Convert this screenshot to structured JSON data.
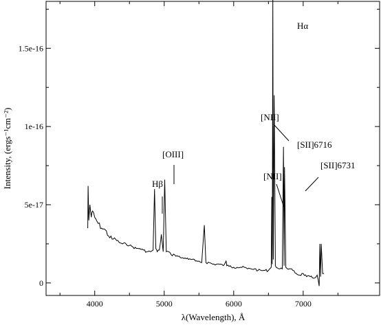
{
  "chart_data": {
    "type": "line",
    "title": "",
    "xlabel": "λ(Wavelength), Å",
    "ylabel": "Intensity, (ergs⁻¹cm⁻²)",
    "xlim": [
      3300,
      8100
    ],
    "ylim": [
      -8e-18,
      1.8e-16
    ],
    "x_ticks": [
      4000,
      5000,
      6000,
      7000
    ],
    "x_tick_labels": [
      "4000",
      "5000",
      "6000",
      "7000"
    ],
    "y_ticks": [
      0,
      5e-17,
      1e-16,
      1.5e-16
    ],
    "y_tick_labels": [
      "0",
      "5e-17",
      "1e-16",
      "1.5e-16"
    ],
    "grid": false,
    "series": [
      {
        "x": [
          3900,
          3905,
          3915,
          3930,
          3950,
          3970,
          4000,
          4050,
          4100,
          4150,
          4200,
          4250,
          4300,
          4350,
          4400,
          4450,
          4500,
          4550,
          4600,
          4650,
          4700,
          4750,
          4800,
          4840,
          4861,
          4880,
          4900,
          4930,
          4959,
          4985,
          5007,
          5030,
          5060,
          5100,
          5150,
          5200,
          5250,
          5300,
          5350,
          5400,
          5450,
          5500,
          5540,
          5577,
          5600,
          5650,
          5700,
          5750,
          5800,
          5850,
          5890,
          5900,
          5950,
          6000,
          6050,
          6100,
          6150,
          6200,
          6250,
          6300,
          6350,
          6400,
          6450,
          6500,
          6540,
          6548,
          6555,
          6563,
          6570,
          6583,
          6600,
          6650,
          6700,
          6716,
          6725,
          6731,
          6750,
          6800,
          6850,
          6900,
          6950,
          7000,
          7050,
          7100,
          7150,
          7200,
          7230,
          7240,
          7250,
          7260,
          7280,
          7300
        ],
        "y": [
          3.5e-17,
          6.2e-17,
          4e-17,
          5e-17,
          4.2e-17,
          4.6e-17,
          4.2e-17,
          3.8e-17,
          3.5e-17,
          3.4e-17,
          3e-17,
          2.8e-17,
          2.8e-17,
          2.6e-17,
          2.5e-17,
          2.5e-17,
          2.4e-17,
          2.3e-17,
          2.2e-17,
          2.2e-17,
          2.1e-17,
          2e-17,
          2e-17,
          2.1e-17,
          6e-17,
          2.2e-17,
          2e-17,
          2.1e-17,
          3.1e-17,
          2e-17,
          6.6e-17,
          2e-17,
          2e-17,
          1.8e-17,
          1.8e-17,
          1.7e-17,
          1.6e-17,
          1.6e-17,
          1.5e-17,
          1.5e-17,
          1.4e-17,
          1.4e-17,
          1.3e-17,
          3.7e-17,
          1.3e-17,
          1.3e-17,
          1.2e-17,
          1.2e-17,
          1.2e-17,
          1.1e-17,
          1.4e-17,
          1.1e-17,
          1.1e-17,
          1e-17,
          1e-17,
          1e-17,
          1e-17,
          9e-18,
          9e-18,
          9e-18,
          8e-18,
          8e-18,
          8e-18,
          8e-18,
          1e-17,
          5.5e-17,
          1.2e-17,
          1.85e-16,
          1.5e-17,
          1.2e-16,
          1.1e-17,
          9e-18,
          9e-18,
          8.7e-17,
          1.1e-17,
          7.4e-17,
          1e-17,
          9e-18,
          8e-18,
          6e-18,
          5e-18,
          6e-18,
          4e-18,
          4e-18,
          3e-18,
          5e-18,
          -2e-18,
          2.5e-17,
          4e-18,
          2.5e-17,
          6e-18,
          6e-18
        ]
      }
    ],
    "annotations": [
      {
        "text": "Hα",
        "x": 6563
      },
      {
        "text": "[NII]",
        "x": 6583
      },
      {
        "text": "[SII]6716",
        "x": 6716
      },
      {
        "text": "[SII]6731",
        "x": 6731
      },
      {
        "text": "[NII]",
        "x": 6548
      },
      {
        "text": "[OIII]",
        "x": 5007
      },
      {
        "text": "Hβ",
        "x": 4861
      }
    ]
  }
}
